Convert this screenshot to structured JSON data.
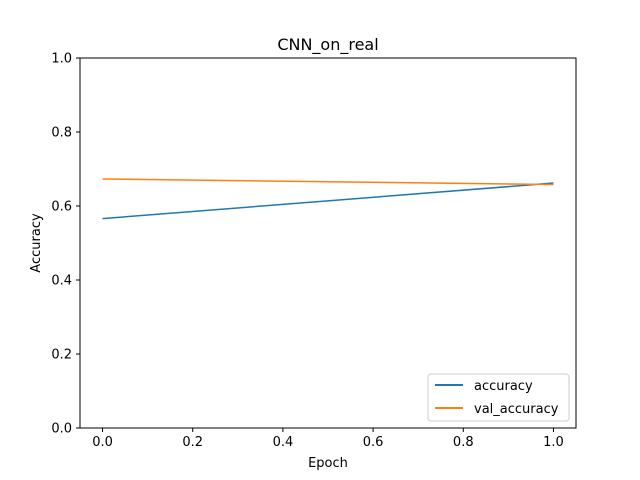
{
  "chart_data": {
    "type": "line",
    "title": "CNN_on_real",
    "xlabel": "Epoch",
    "ylabel": "Accuracy",
    "xlim": [
      -0.05,
      1.05
    ],
    "ylim": [
      0.0,
      1.0
    ],
    "xticks": [
      0.0,
      0.2,
      0.4,
      0.6,
      0.8,
      1.0
    ],
    "xtick_labels": [
      "0.0",
      "0.2",
      "0.4",
      "0.6",
      "0.8",
      "1.0"
    ],
    "yticks": [
      0.0,
      0.2,
      0.4,
      0.6,
      0.8,
      1.0
    ],
    "ytick_labels": [
      "0.0",
      "0.2",
      "0.4",
      "0.6",
      "0.8",
      "1.0"
    ],
    "grid": false,
    "legend_position": "lower right",
    "x": [
      0,
      1
    ],
    "series": [
      {
        "name": "accuracy",
        "values": [
          0.566,
          0.662
        ],
        "color": "#1f77b4"
      },
      {
        "name": "val_accuracy",
        "values": [
          0.673,
          0.658
        ],
        "color": "#ff7f0e"
      }
    ]
  }
}
